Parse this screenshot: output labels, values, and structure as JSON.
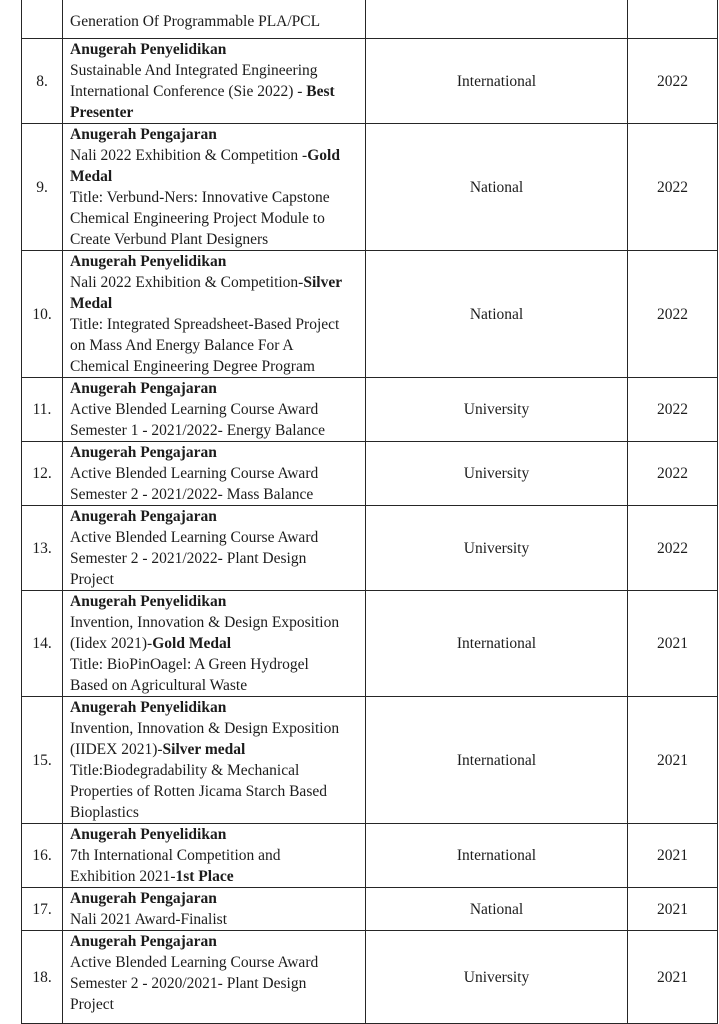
{
  "page": {
    "background": "#ffffff",
    "text_color": "#1c1c1c",
    "border_color": "#262626"
  },
  "table": {
    "rows": [
      {
        "no": "",
        "desc_lines": [
          [
            {
              "t": "Generation Of Programmable PLA/PCL",
              "b": false
            }
          ]
        ],
        "scope": "",
        "year": "",
        "clip": "top"
      },
      {
        "no": "8.",
        "desc_lines": [
          [
            {
              "t": "Anugerah Penyelidikan",
              "b": true
            }
          ],
          [
            {
              "t": "Sustainable And Integrated Engineering",
              "b": false
            }
          ],
          [
            {
              "t": "International Conference (Sie 2022) - ",
              "b": false
            },
            {
              "t": "Best",
              "b": true
            }
          ],
          [
            {
              "t": "Presenter",
              "b": true
            }
          ]
        ],
        "scope": "International",
        "year": "2022",
        "clip": ""
      },
      {
        "no": "9.",
        "desc_lines": [
          [
            {
              "t": "Anugerah Pengajaran",
              "b": true
            }
          ],
          [
            {
              "t": "Nali 2022 Exhibition & Competition -",
              "b": false
            },
            {
              "t": "Gold",
              "b": true
            }
          ],
          [
            {
              "t": "Medal",
              "b": true
            }
          ],
          [
            {
              "t": "Title: Verbund-Ners: Innovative Capstone",
              "b": false
            }
          ],
          [
            {
              "t": "Chemical Engineering Project Module to",
              "b": false
            }
          ],
          [
            {
              "t": "Create Verbund Plant Designers",
              "b": false
            }
          ]
        ],
        "scope": "National",
        "year": "2022",
        "clip": ""
      },
      {
        "no": "10.",
        "desc_lines": [
          [
            {
              "t": "Anugerah Penyelidikan",
              "b": true
            }
          ],
          [
            {
              "t": "Nali 2022 Exhibition & Competition-",
              "b": false
            },
            {
              "t": "Silver",
              "b": true
            }
          ],
          [
            {
              "t": "Medal",
              "b": true
            }
          ],
          [
            {
              "t": "Title: Integrated Spreadsheet-Based Project",
              "b": false
            }
          ],
          [
            {
              "t": "on Mass And Energy Balance For A",
              "b": false
            }
          ],
          [
            {
              "t": "Chemical Engineering Degree Program",
              "b": false
            }
          ]
        ],
        "scope": "National",
        "year": "2022",
        "clip": ""
      },
      {
        "no": "11.",
        "desc_lines": [
          [
            {
              "t": "Anugerah Pengajaran",
              "b": true
            }
          ],
          [
            {
              "t": "Active Blended Learning Course Award",
              "b": false
            }
          ],
          [
            {
              "t": "Semester 1 - 2021/2022- Energy Balance",
              "b": false
            }
          ]
        ],
        "scope": "University",
        "year": "2022",
        "clip": ""
      },
      {
        "no": "12.",
        "desc_lines": [
          [
            {
              "t": "Anugerah Pengajaran",
              "b": true
            }
          ],
          [
            {
              "t": "Active Blended Learning Course Award",
              "b": false
            }
          ],
          [
            {
              "t": "Semester 2 - 2021/2022- Mass Balance",
              "b": false
            }
          ]
        ],
        "scope": "University",
        "year": "2022",
        "clip": ""
      },
      {
        "no": "13.",
        "desc_lines": [
          [
            {
              "t": "Anugerah Pengajaran",
              "b": true
            }
          ],
          [
            {
              "t": "Active Blended Learning Course Award",
              "b": false
            }
          ],
          [
            {
              "t": "Semester 2 - 2021/2022- Plant Design",
              "b": false
            }
          ],
          [
            {
              "t": "Project",
              "b": false
            }
          ]
        ],
        "scope": "University",
        "year": "2022",
        "clip": ""
      },
      {
        "no": "14.",
        "desc_lines": [
          [
            {
              "t": "Anugerah Penyelidikan",
              "b": true
            }
          ],
          [
            {
              "t": "Invention, Innovation & Design Exposition",
              "b": false
            }
          ],
          [
            {
              "t": "(Iidex 2021)-",
              "b": false
            },
            {
              "t": "Gold Medal",
              "b": true
            }
          ],
          [
            {
              "t": "Title: BioPinOagel: A Green Hydrogel",
              "b": false
            }
          ],
          [
            {
              "t": "Based on Agricultural Waste",
              "b": false
            }
          ]
        ],
        "scope": "International",
        "year": "2021",
        "clip": ""
      },
      {
        "no": "15.",
        "desc_lines": [
          [
            {
              "t": "Anugerah Penyelidikan",
              "b": true
            }
          ],
          [
            {
              "t": "Invention, Innovation & Design Exposition",
              "b": false
            }
          ],
          [
            {
              "t": "(IIDEX 2021)-",
              "b": false
            },
            {
              "t": "Silver medal",
              "b": true
            }
          ],
          [
            {
              "t": "Title:Biodegradability & Mechanical",
              "b": false
            }
          ],
          [
            {
              "t": "Properties of Rotten Jicama Starch Based",
              "b": false
            }
          ],
          [
            {
              "t": "Bioplastics",
              "b": false
            }
          ]
        ],
        "scope": "International",
        "year": "2021",
        "clip": ""
      },
      {
        "no": "16.",
        "desc_lines": [
          [
            {
              "t": "Anugerah Penyelidikan",
              "b": true
            }
          ],
          [
            {
              "t": "7th International Competition and",
              "b": false
            }
          ],
          [
            {
              "t": "Exhibition 2021-",
              "b": false
            },
            {
              "t": "1st Place",
              "b": true
            }
          ]
        ],
        "scope": "International",
        "year": "2021",
        "clip": ""
      },
      {
        "no": "17.",
        "desc_lines": [
          [
            {
              "t": "Anugerah Pengajaran",
              "b": true
            }
          ],
          [
            {
              "t": "Nali 2021 Award-Finalist",
              "b": false
            }
          ]
        ],
        "scope": "National",
        "year": "2021",
        "clip": ""
      },
      {
        "no": "18.",
        "desc_lines": [
          [
            {
              "t": "Anugerah Pengajaran",
              "b": true
            }
          ],
          [
            {
              "t": "Active Blended Learning Course Award",
              "b": false
            }
          ],
          [
            {
              "t": "Semester 2 - 2020/2021- Plant Design",
              "b": false
            }
          ],
          [
            {
              "t": "Project",
              "b": false
            }
          ]
        ],
        "scope": "University",
        "year": "2021",
        "clip": ""
      },
      {
        "no": "",
        "desc_lines": [],
        "scope": "",
        "year": "",
        "clip": "bottom"
      }
    ]
  }
}
